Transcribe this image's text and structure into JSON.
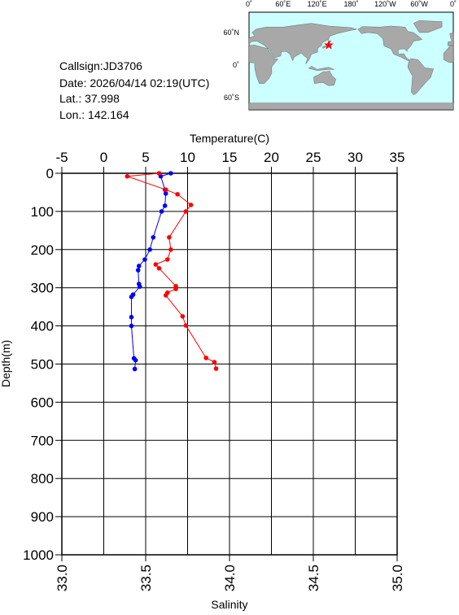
{
  "info": {
    "callsign": "Callsign:JD3706",
    "date": "Date:  2026/04/14 02:19(UTC)",
    "lat": "Lat.:  37.998",
    "lon": "Lon.:  142.164"
  },
  "map": {
    "lon_labels": [
      "0˚",
      "60˚E",
      "120˚E",
      "180˚",
      "120˚W",
      "60˚W",
      "0˚"
    ],
    "lat_labels": [
      "60˚N",
      "0˚",
      "60˚S"
    ]
  },
  "chart_data": {
    "type": "line",
    "x2_label": "Temperature(C)",
    "x_label": "Salinity",
    "y_label": "Depth(m)",
    "x2lim": [
      -5,
      35
    ],
    "x2ticks": [
      -5,
      0,
      5,
      10,
      15,
      20,
      25,
      30,
      35
    ],
    "xlim": [
      33,
      35
    ],
    "xticks": [
      {
        "value": 33,
        "label": "33.0"
      },
      33.5,
      {
        "value": 34,
        "label": "34.0"
      },
      34.5,
      {
        "value": 35,
        "label": "35.0"
      }
    ],
    "ylim": [
      0,
      1000
    ],
    "yticks": [
      0,
      100,
      200,
      300,
      400,
      500,
      600,
      700,
      800,
      900,
      1000
    ],
    "y_inverted": true,
    "grid": true,
    "series": [
      {
        "color": "#0000ff",
        "axis": "x2",
        "x": [
          8.0,
          6.8,
          7.3,
          7.4,
          7.3,
          6.9,
          5.9,
          5.5,
          4.9,
          4.2,
          4.1,
          4.2,
          4.3,
          3.5,
          3.3,
          3.3,
          3.3,
          3.6,
          3.8,
          3.7
        ],
        "y": [
          0,
          8,
          43,
          53,
          85,
          100,
          168,
          200,
          226,
          243,
          254,
          290,
          297,
          318,
          324,
          377,
          400,
          485,
          490,
          513
        ]
      },
      {
        "color": "#ff0000",
        "x": [
          33.58,
          33.39,
          33.62,
          33.69,
          33.77,
          33.74,
          33.64,
          33.65,
          33.63,
          33.56,
          33.58,
          33.68,
          33.68,
          33.63,
          33.62,
          33.72,
          33.74,
          33.86,
          33.91,
          33.92
        ],
        "y": [
          0,
          8,
          43,
          55,
          83,
          100,
          168,
          200,
          226,
          239,
          249,
          296,
          303,
          313,
          320,
          375,
          399,
          484,
          495,
          512
        ]
      }
    ]
  }
}
